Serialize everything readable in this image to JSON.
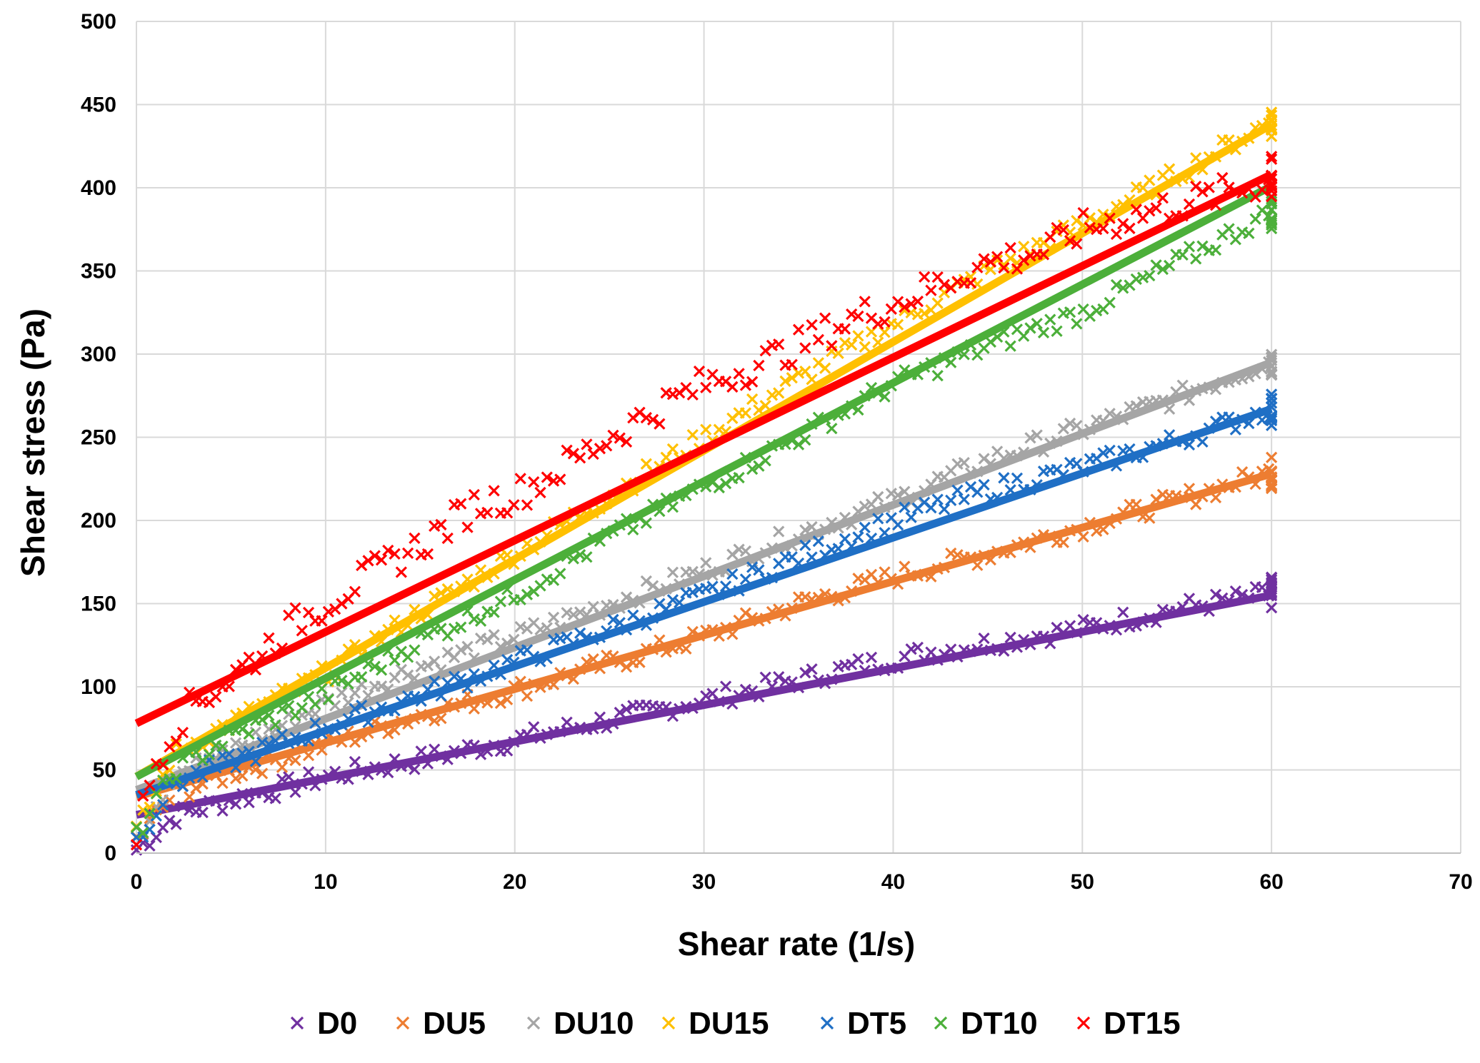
{
  "chart_data": {
    "type": "scatter",
    "title": "",
    "xlabel": "Shear rate (1/s)",
    "ylabel": "Shear stress (Pa)",
    "xlim": [
      0,
      70
    ],
    "ylim": [
      0,
      500
    ],
    "xticks": [
      0,
      10,
      20,
      30,
      40,
      50,
      60,
      70
    ],
    "yticks": [
      0,
      50,
      100,
      150,
      200,
      250,
      300,
      350,
      400,
      450,
      500
    ],
    "grid": true,
    "legend_position": "bottom",
    "marker": "x",
    "series": [
      {
        "name": "D0",
        "color": "#7030A0",
        "x": [
          0,
          2,
          5,
          8,
          10,
          15,
          20,
          25,
          30,
          35,
          38,
          39,
          41.5,
          45,
          50,
          55,
          60
        ],
        "y": [
          2,
          22,
          32,
          40,
          46,
          56,
          68,
          80,
          92,
          104,
          112,
          114,
          120,
          126,
          135,
          147,
          156
        ],
        "trend": [
          [
            0,
            23
          ],
          [
            60,
            155
          ]
        ]
      },
      {
        "name": "DU5",
        "color": "#ED7D31",
        "x": [
          0,
          2,
          5,
          10,
          15,
          20,
          25,
          30,
          35,
          40,
          45,
          50,
          55,
          60
        ],
        "y": [
          8,
          36,
          48,
          65,
          83,
          98,
          114,
          130,
          150,
          166,
          180,
          196,
          212,
          229
        ],
        "trend": [
          [
            0,
            34
          ],
          [
            60,
            228
          ]
        ]
      },
      {
        "name": "DU10",
        "color": "#A5A5A5",
        "x": [
          0,
          2,
          5,
          10,
          15,
          20,
          25,
          30,
          35,
          40,
          45,
          50,
          55,
          60
        ],
        "y": [
          10,
          48,
          62,
          90,
          112,
          130,
          150,
          170,
          192,
          212,
          236,
          255,
          274,
          296
        ],
        "trend": [
          [
            0,
            38
          ],
          [
            60,
            295
          ]
        ]
      },
      {
        "name": "DU15",
        "color": "#FFC000",
        "x": [
          0,
          2,
          5,
          10,
          15,
          20,
          25,
          30,
          35,
          40,
          45,
          50,
          55,
          60
        ],
        "y": [
          12,
          60,
          78,
          108,
          145,
          180,
          215,
          250,
          285,
          318,
          350,
          378,
          408,
          440
        ],
        "trend": [
          [
            0,
            46
          ],
          [
            60,
            438
          ]
        ]
      },
      {
        "name": "DT5",
        "color": "#1F6FC5",
        "x": [
          0,
          2,
          5,
          10,
          15,
          20,
          25,
          30,
          35,
          40,
          45,
          50,
          55,
          60
        ],
        "y": [
          8,
          42,
          55,
          76,
          95,
          115,
          135,
          155,
          178,
          200,
          218,
          232,
          248,
          267
        ],
        "trend": [
          [
            0,
            35
          ],
          [
            60,
            267
          ]
        ]
      },
      {
        "name": "DT10",
        "color": "#4CAF3A",
        "x": [
          0,
          2,
          5,
          10,
          15,
          20,
          25,
          30,
          35,
          40,
          45,
          50,
          55,
          60
        ],
        "y": [
          10,
          50,
          70,
          95,
          128,
          155,
          190,
          220,
          250,
          282,
          305,
          325,
          355,
          385
        ],
        "trend": [
          [
            0,
            46
          ],
          [
            60,
            401
          ]
        ]
      },
      {
        "name": "DT15",
        "color": "#FF0000",
        "x": [
          0,
          1,
          2,
          3,
          5,
          8,
          10,
          12,
          15,
          18,
          20,
          22,
          25,
          28,
          30,
          32,
          35,
          38,
          40,
          43,
          45,
          48,
          50,
          55,
          58,
          60
        ],
        "y": [
          12,
          55,
          75,
          90,
          105,
          135,
          150,
          165,
          185,
          210,
          215,
          228,
          250,
          270,
          282,
          290,
          305,
          322,
          330,
          345,
          355,
          362,
          375,
          390,
          398,
          405
        ],
        "trend": [
          [
            0,
            78
          ],
          [
            60,
            408
          ]
        ]
      }
    ]
  }
}
